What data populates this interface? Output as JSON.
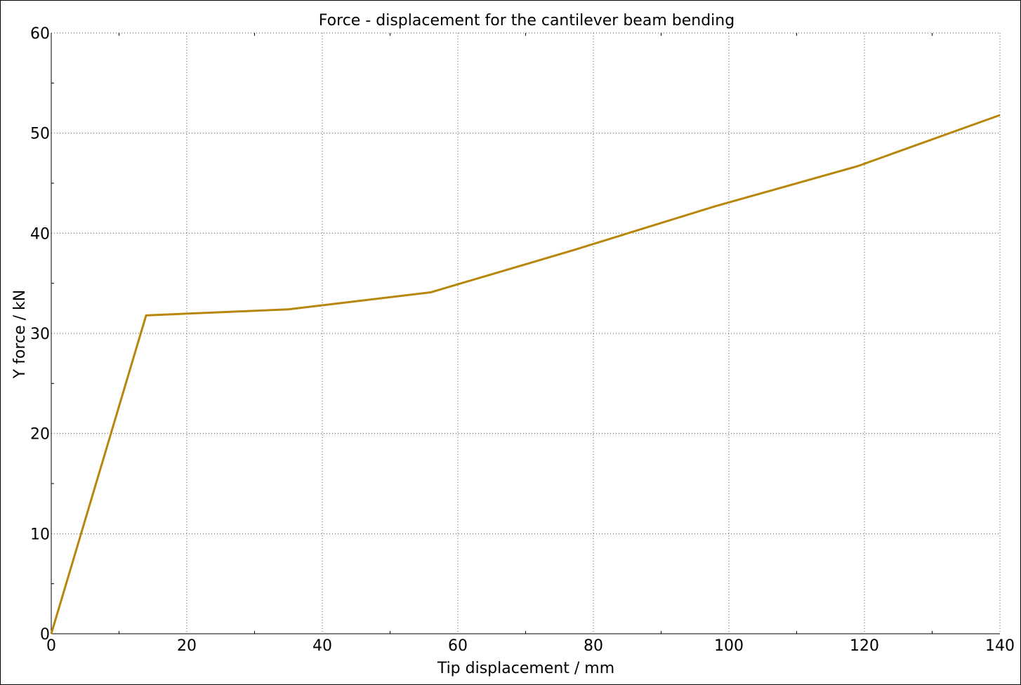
{
  "chart_data": {
    "type": "line",
    "title": "Force - displacement for the cantilever beam bending",
    "xlabel": "Tip displacement / mm",
    "ylabel": "Y force / kN",
    "xlim": [
      0,
      140
    ],
    "ylim": [
      0,
      60
    ],
    "xticks": [
      0,
      20,
      40,
      60,
      80,
      100,
      120,
      140
    ],
    "yticks": [
      0,
      10,
      20,
      30,
      40,
      50,
      60
    ],
    "grid": true,
    "series": [
      {
        "color": "#b8860b",
        "x": [
          0,
          14,
          35,
          56,
          77,
          98,
          119,
          140
        ],
        "y": [
          0,
          31.8,
          32.4,
          34.1,
          38.3,
          42.7,
          46.7,
          51.8
        ]
      }
    ]
  }
}
